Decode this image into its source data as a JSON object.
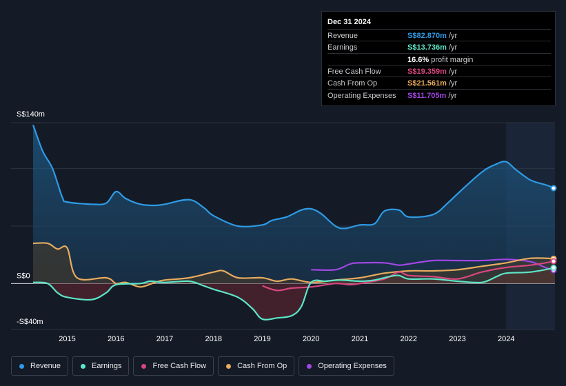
{
  "tooltip": {
    "date": "Dec 31 2024",
    "rows": [
      {
        "label": "Revenue",
        "value": "S$82.870m",
        "unit": "/yr",
        "color": "#2e9be6"
      },
      {
        "label": "Earnings",
        "value": "S$13.736m",
        "unit": "/yr",
        "color": "#5ee6c8"
      },
      {
        "label": "",
        "value": "16.6%",
        "unit": "profit margin",
        "color": "#ffffff"
      },
      {
        "label": "Free Cash Flow",
        "value": "S$19.359m",
        "unit": "/yr",
        "color": "#d9467f"
      },
      {
        "label": "Cash From Op",
        "value": "S$21.561m",
        "unit": "/yr",
        "color": "#e8ac5e"
      },
      {
        "label": "Operating Expenses",
        "value": "S$11.705m",
        "unit": "/yr",
        "color": "#a346e6"
      }
    ]
  },
  "legend": [
    {
      "label": "Revenue",
      "color": "#2e9be6"
    },
    {
      "label": "Earnings",
      "color": "#5ee6c8"
    },
    {
      "label": "Free Cash Flow",
      "color": "#d9467f"
    },
    {
      "label": "Cash From Op",
      "color": "#e8ac5e"
    },
    {
      "label": "Operating Expenses",
      "color": "#a346e6"
    }
  ],
  "chart_data": {
    "type": "line",
    "title": "",
    "xlabel": "",
    "ylabel": "",
    "y_labels": {
      "top": "S$140m",
      "zero": "S$0",
      "bottom": "-S$40m"
    },
    "ylim": [
      -40,
      140
    ],
    "xlim": [
      2014.3,
      2025.0
    ],
    "x_ticks": [
      2015,
      2016,
      2017,
      2018,
      2019,
      2020,
      2021,
      2022,
      2023,
      2024
    ],
    "x_tick_labels": [
      "2015",
      "2016",
      "2017",
      "2018",
      "2019",
      "2020",
      "2021",
      "2022",
      "2023",
      "2024"
    ],
    "highlight_from": 2024.0,
    "series": [
      {
        "name": "Revenue",
        "color": "#2e9be6",
        "points": [
          [
            2014.3,
            138
          ],
          [
            2014.5,
            115
          ],
          [
            2014.7,
            100
          ],
          [
            2014.9,
            75
          ],
          [
            2015.0,
            71
          ],
          [
            2015.5,
            69
          ],
          [
            2015.8,
            70
          ],
          [
            2016.0,
            80
          ],
          [
            2016.2,
            74
          ],
          [
            2016.5,
            69
          ],
          [
            2016.8,
            68
          ],
          [
            2017.0,
            69
          ],
          [
            2017.5,
            73
          ],
          [
            2017.8,
            66
          ],
          [
            2018.0,
            59
          ],
          [
            2018.5,
            50
          ],
          [
            2019.0,
            51
          ],
          [
            2019.2,
            55
          ],
          [
            2019.5,
            58
          ],
          [
            2019.8,
            64
          ],
          [
            2020.0,
            65
          ],
          [
            2020.2,
            61
          ],
          [
            2020.5,
            50
          ],
          [
            2020.7,
            48
          ],
          [
            2021.0,
            51
          ],
          [
            2021.3,
            52
          ],
          [
            2021.5,
            63
          ],
          [
            2021.8,
            64
          ],
          [
            2022.0,
            58
          ],
          [
            2022.5,
            60
          ],
          [
            2022.8,
            70
          ],
          [
            2023.0,
            78
          ],
          [
            2023.5,
            97
          ],
          [
            2023.8,
            104
          ],
          [
            2024.0,
            106
          ],
          [
            2024.2,
            99
          ],
          [
            2024.5,
            90
          ],
          [
            2024.8,
            86
          ],
          [
            2025.0,
            83
          ]
        ]
      },
      {
        "name": "Earnings",
        "color": "#5ee6c8",
        "points": [
          [
            2014.3,
            1
          ],
          [
            2014.6,
            0
          ],
          [
            2014.8,
            -8
          ],
          [
            2015.0,
            -12
          ],
          [
            2015.5,
            -14
          ],
          [
            2015.8,
            -8
          ],
          [
            2016.0,
            -1
          ],
          [
            2016.5,
            0
          ],
          [
            2016.7,
            2
          ],
          [
            2017.0,
            1
          ],
          [
            2017.5,
            2
          ],
          [
            2017.8,
            -2
          ],
          [
            2018.0,
            -5
          ],
          [
            2018.5,
            -12
          ],
          [
            2018.8,
            -22
          ],
          [
            2019.0,
            -31
          ],
          [
            2019.3,
            -30
          ],
          [
            2019.6,
            -28
          ],
          [
            2019.8,
            -20
          ],
          [
            2020.0,
            1
          ],
          [
            2020.3,
            2
          ],
          [
            2020.6,
            3
          ],
          [
            2021.0,
            2
          ],
          [
            2021.3,
            3
          ],
          [
            2021.6,
            6
          ],
          [
            2021.8,
            7
          ],
          [
            2022.0,
            4
          ],
          [
            2022.5,
            4
          ],
          [
            2023.0,
            2
          ],
          [
            2023.5,
            1
          ],
          [
            2023.8,
            6
          ],
          [
            2024.0,
            9
          ],
          [
            2024.5,
            10
          ],
          [
            2025.0,
            13.7
          ]
        ]
      },
      {
        "name": "Free Cash Flow",
        "color": "#d9467f",
        "points": [
          [
            2019.0,
            -2
          ],
          [
            2019.3,
            -6
          ],
          [
            2019.6,
            -4
          ],
          [
            2020.0,
            -3
          ],
          [
            2020.5,
            0
          ],
          [
            2020.8,
            -1
          ],
          [
            2021.0,
            0
          ],
          [
            2021.5,
            4
          ],
          [
            2021.8,
            10
          ],
          [
            2022.0,
            7
          ],
          [
            2022.5,
            6
          ],
          [
            2023.0,
            4
          ],
          [
            2023.5,
            10
          ],
          [
            2024.0,
            14
          ],
          [
            2024.5,
            16
          ],
          [
            2025.0,
            19.4
          ]
        ]
      },
      {
        "name": "Cash From Op",
        "color": "#e8ac5e",
        "points": [
          [
            2014.3,
            35
          ],
          [
            2014.6,
            35
          ],
          [
            2014.8,
            30
          ],
          [
            2015.0,
            31
          ],
          [
            2015.2,
            5
          ],
          [
            2015.8,
            5
          ],
          [
            2016.0,
            0
          ],
          [
            2016.2,
            1
          ],
          [
            2016.5,
            -3
          ],
          [
            2016.8,
            1
          ],
          [
            2017.0,
            3
          ],
          [
            2017.5,
            5
          ],
          [
            2018.0,
            10
          ],
          [
            2018.2,
            11
          ],
          [
            2018.5,
            5
          ],
          [
            2019.0,
            5
          ],
          [
            2019.3,
            2
          ],
          [
            2019.6,
            4
          ],
          [
            2020.0,
            1
          ],
          [
            2020.5,
            3
          ],
          [
            2021.0,
            5
          ],
          [
            2021.5,
            9
          ],
          [
            2022.0,
            11
          ],
          [
            2022.5,
            11
          ],
          [
            2023.0,
            12
          ],
          [
            2023.5,
            15
          ],
          [
            2024.0,
            18
          ],
          [
            2024.5,
            22
          ],
          [
            2025.0,
            21.6
          ]
        ]
      },
      {
        "name": "Operating Expenses",
        "color": "#a346e6",
        "points": [
          [
            2020.0,
            12
          ],
          [
            2020.5,
            12
          ],
          [
            2020.8,
            17
          ],
          [
            2021.0,
            18
          ],
          [
            2021.5,
            18
          ],
          [
            2021.8,
            16
          ],
          [
            2022.0,
            17
          ],
          [
            2022.5,
            20
          ],
          [
            2023.0,
            20
          ],
          [
            2023.5,
            20
          ],
          [
            2024.0,
            21
          ],
          [
            2024.5,
            19
          ],
          [
            2024.8,
            14
          ],
          [
            2025.0,
            11.7
          ]
        ]
      }
    ]
  }
}
